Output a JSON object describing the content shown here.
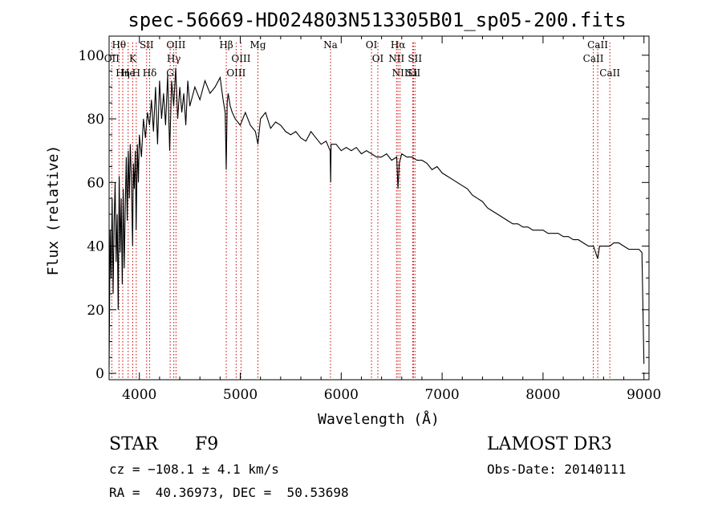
{
  "chart_data": {
    "type": "line",
    "title": "spec-56669-HD024803N513305B01_sp05-200.fits",
    "xlabel": "Wavelength (Å)",
    "ylabel": "Flux (relative)",
    "xlim": [
      3700,
      9050
    ],
    "ylim": [
      -2,
      106
    ],
    "xticks": [
      4000,
      5000,
      6000,
      7000,
      8000,
      9000
    ],
    "yticks": [
      0,
      20,
      40,
      60,
      80,
      100
    ],
    "series": [
      {
        "name": "flux",
        "x": [
          3700,
          3710,
          3720,
          3730,
          3740,
          3750,
          3760,
          3770,
          3780,
          3790,
          3800,
          3810,
          3820,
          3830,
          3840,
          3850,
          3860,
          3870,
          3880,
          3890,
          3900,
          3910,
          3920,
          3933,
          3940,
          3950,
          3960,
          3968,
          3980,
          3990,
          4000,
          4020,
          4040,
          4060,
          4080,
          4101,
          4120,
          4140,
          4160,
          4180,
          4200,
          4220,
          4240,
          4260,
          4280,
          4300,
          4320,
          4340,
          4360,
          4380,
          4400,
          4420,
          4440,
          4460,
          4480,
          4500,
          4550,
          4600,
          4650,
          4700,
          4750,
          4800,
          4830,
          4850,
          4861,
          4870,
          4880,
          4900,
          4920,
          4950,
          5000,
          5050,
          5100,
          5150,
          5175,
          5200,
          5250,
          5300,
          5350,
          5400,
          5450,
          5500,
          5550,
          5600,
          5650,
          5700,
          5750,
          5800,
          5850,
          5890,
          5896,
          5900,
          5950,
          6000,
          6050,
          6100,
          6150,
          6200,
          6250,
          6300,
          6350,
          6400,
          6450,
          6500,
          6550,
          6563,
          6575,
          6600,
          6650,
          6700,
          6750,
          6800,
          6850,
          6900,
          6950,
          7000,
          7050,
          7100,
          7150,
          7200,
          7250,
          7300,
          7350,
          7400,
          7450,
          7500,
          7550,
          7600,
          7650,
          7700,
          7750,
          7800,
          7850,
          7900,
          7950,
          8000,
          8050,
          8100,
          8150,
          8200,
          8250,
          8300,
          8350,
          8400,
          8450,
          8500,
          8542,
          8560,
          8600,
          8662,
          8700,
          8750,
          8800,
          8850,
          8900,
          8950,
          8980,
          9000
        ],
        "values": [
          2,
          45,
          30,
          55,
          25,
          48,
          60,
          35,
          50,
          20,
          62,
          38,
          55,
          28,
          58,
          33,
          52,
          68,
          48,
          70,
          55,
          72,
          62,
          40,
          66,
          58,
          70,
          45,
          72,
          60,
          75,
          68,
          80,
          74,
          82,
          78,
          86,
          76,
          90,
          72,
          92,
          80,
          88,
          78,
          94,
          70,
          92,
          84,
          96,
          80,
          90,
          82,
          88,
          78,
          92,
          84,
          90,
          86,
          92,
          88,
          90,
          93,
          86,
          82,
          64,
          85,
          88,
          84,
          82,
          80,
          78,
          82,
          78,
          76,
          72,
          80,
          82,
          77,
          79,
          78,
          76,
          75,
          76,
          74,
          73,
          76,
          74,
          72,
          73,
          70,
          60,
          72,
          72,
          70,
          71,
          70,
          71,
          69,
          70,
          69,
          68,
          68,
          69,
          67,
          68,
          58,
          66,
          69,
          68,
          68,
          67,
          67,
          66,
          64,
          65,
          63,
          62,
          61,
          60,
          59,
          58,
          56,
          55,
          54,
          52,
          51,
          50,
          49,
          48,
          47,
          47,
          46,
          46,
          45,
          45,
          45,
          44,
          44,
          44,
          43,
          43,
          42,
          42,
          41,
          40,
          40,
          36,
          40,
          40,
          40,
          41,
          41,
          40,
          39,
          39,
          39,
          38,
          3
        ]
      }
    ],
    "spectral_lines": [
      {
        "label": "Hθ",
        "x": 3798
      },
      {
        "label": "OII",
        "x": 3727
      },
      {
        "label": "He",
        "x": 3889
      },
      {
        "label": "Hη",
        "x": 3835
      },
      {
        "label": "K",
        "x": 3934
      },
      {
        "label": "H",
        "x": 3969
      },
      {
        "label": "SII",
        "x": 4072
      },
      {
        "label": "Hδ",
        "x": 4102
      },
      {
        "label": "OIII",
        "x": 4363
      },
      {
        "label": "Hγ",
        "x": 4341
      },
      {
        "label": "G",
        "x": 4305
      },
      {
        "label": "Hβ",
        "x": 4861
      },
      {
        "label": "OIII",
        "x": 5007
      },
      {
        "label": "OIII",
        "x": 4959
      },
      {
        "label": "Mg",
        "x": 5175
      },
      {
        "label": "Na",
        "x": 5894
      },
      {
        "label": "OI",
        "x": 6300
      },
      {
        "label": "OI",
        "x": 6363
      },
      {
        "label": "Hα",
        "x": 6563
      },
      {
        "label": "NII",
        "x": 6548
      },
      {
        "label": "NII",
        "x": 6583
      },
      {
        "label": "SII",
        "x": 6716
      },
      {
        "label": "Li",
        "x": 6708
      },
      {
        "label": "SII",
        "x": 6731
      },
      {
        "label": "CaII",
        "x": 8542
      },
      {
        "label": "CaII",
        "x": 8498
      },
      {
        "label": "CaII",
        "x": 8662
      }
    ]
  },
  "info": {
    "class": "STAR",
    "subclass": "F9",
    "survey": "LAMOST DR3",
    "cz": "cz = −108.1 ± 4.1 km/s",
    "obs_date": "Obs-Date: 20140111",
    "coords": "RA =  40.36973, DEC =  50.53698"
  },
  "colors": {
    "line_marker": "#cc0000",
    "spectrum": "#000000"
  }
}
